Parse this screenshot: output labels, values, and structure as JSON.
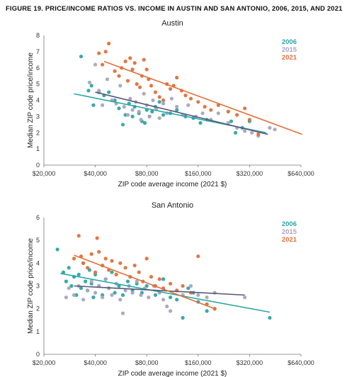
{
  "figure_title": "FIGURE 19. PRICE/INCOME RATIOS VS. INCOME IN AUSTIN AND SAN ANTONIO, 2006, 2015, AND 2021",
  "colors": {
    "2006": "#2aa6a4",
    "2015": "#a8a4bf",
    "2021": "#e0703a",
    "trend2015": "#5a5679"
  },
  "chart_data": [
    {
      "type": "scatter",
      "title": "Austin",
      "xlabel": "ZIP code average income (2021 $)",
      "ylabel": "Median ZIP code price/income",
      "xscale": "log",
      "xlim": [
        20000,
        640000
      ],
      "ylim": [
        0,
        8
      ],
      "xticks": [
        20000,
        40000,
        80000,
        160000,
        320000,
        640000
      ],
      "xticklabels": [
        "$20,000",
        "$40,000",
        "$80,000",
        "$160,000",
        "$320,000",
        "$640,000"
      ],
      "yticks": [
        0,
        1,
        2,
        3,
        4,
        5,
        6,
        7,
        8
      ],
      "yticklabels": [
        "0",
        "1",
        "2",
        "3",
        "4",
        "5",
        "6",
        "7",
        "8"
      ],
      "legend": [
        "2006",
        "2015",
        "2021"
      ],
      "legend_position": "top-right",
      "grid": false,
      "series": [
        {
          "name": "2006",
          "points": [
            [
              33000,
              6.7
            ],
            [
              36500,
              4.6
            ],
            [
              38000,
              4.9
            ],
            [
              39000,
              3.7
            ],
            [
              42000,
              4.5
            ],
            [
              45000,
              4.3
            ],
            [
              48000,
              4.5
            ],
            [
              52000,
              4.0
            ],
            [
              55000,
              3.5
            ],
            [
              58000,
              2.5
            ],
            [
              60000,
              3.1
            ],
            [
              63000,
              3.8
            ],
            [
              66000,
              3.0
            ],
            [
              68000,
              3.6
            ],
            [
              72000,
              3.2
            ],
            [
              75000,
              2.7
            ],
            [
              78000,
              2.6
            ],
            [
              80000,
              3.4
            ],
            [
              83000,
              3.0
            ],
            [
              86000,
              3.3
            ],
            [
              90000,
              3.6
            ],
            [
              95000,
              3.9
            ],
            [
              100000,
              3.1
            ],
            [
              110000,
              3.2
            ],
            [
              120000,
              3.4
            ],
            [
              135000,
              3.0
            ],
            [
              150000,
              2.9
            ],
            [
              165000,
              2.6
            ],
            [
              180000,
              2.8
            ],
            [
              250000,
              2.7
            ],
            [
              265000,
              2.0
            ],
            [
              290000,
              2.3
            ],
            [
              320000,
              2.7
            ]
          ],
          "trend": [
            [
              30000,
              4.4
            ],
            [
              400000,
              2.0
            ]
          ]
        },
        {
          "name": "2015",
          "points": [
            [
              37000,
              5.1
            ],
            [
              40000,
              6.2
            ],
            [
              42000,
              4.6
            ],
            [
              44000,
              3.7
            ],
            [
              47000,
              5.3
            ],
            [
              50000,
              4.0
            ],
            [
              53000,
              3.8
            ],
            [
              56000,
              4.9
            ],
            [
              59000,
              3.6
            ],
            [
              62000,
              3.1
            ],
            [
              64000,
              4.1
            ],
            [
              66000,
              3.4
            ],
            [
              69000,
              3.9
            ],
            [
              72000,
              3.3
            ],
            [
              74000,
              2.8
            ],
            [
              77000,
              4.4
            ],
            [
              80000,
              3.7
            ],
            [
              83000,
              3.0
            ],
            [
              87000,
              4.0
            ],
            [
              91000,
              3.5
            ],
            [
              95000,
              2.9
            ],
            [
              100000,
              3.8
            ],
            [
              105000,
              3.2
            ],
            [
              112000,
              4.1
            ],
            [
              120000,
              3.6
            ],
            [
              130000,
              3.1
            ],
            [
              140000,
              3.7
            ],
            [
              155000,
              3.0
            ],
            [
              170000,
              3.2
            ],
            [
              190000,
              2.8
            ],
            [
              210000,
              3.2
            ],
            [
              240000,
              2.6
            ],
            [
              270000,
              2.3
            ],
            [
              300000,
              2.1
            ],
            [
              330000,
              2.0
            ],
            [
              360000,
              1.8
            ],
            [
              420000,
              2.3
            ],
            [
              450000,
              2.2
            ]
          ],
          "trend": [
            [
              40000,
              4.5
            ],
            [
              410000,
              1.9
            ]
          ]
        },
        {
          "name": "2021",
          "points": [
            [
              42000,
              6.9
            ],
            [
              44000,
              6.2
            ],
            [
              46000,
              7.0
            ],
            [
              48000,
              7.5
            ],
            [
              52000,
              5.8
            ],
            [
              55000,
              5.5
            ],
            [
              57000,
              6.0
            ],
            [
              60000,
              6.4
            ],
            [
              62000,
              5.2
            ],
            [
              64000,
              6.6
            ],
            [
              66000,
              5.9
            ],
            [
              68000,
              6.3
            ],
            [
              70000,
              5.0
            ],
            [
              73000,
              4.8
            ],
            [
              75000,
              5.5
            ],
            [
              77000,
              6.5
            ],
            [
              80000,
              5.9
            ],
            [
              82000,
              5.3
            ],
            [
              85000,
              4.9
            ],
            [
              90000,
              4.5
            ],
            [
              95000,
              4.2
            ],
            [
              100000,
              4.0
            ],
            [
              105000,
              5.0
            ],
            [
              110000,
              4.7
            ],
            [
              115000,
              4.9
            ],
            [
              120000,
              5.4
            ],
            [
              128000,
              4.6
            ],
            [
              135000,
              4.3
            ],
            [
              145000,
              4.1
            ],
            [
              160000,
              3.9
            ],
            [
              175000,
              3.6
            ],
            [
              190000,
              3.4
            ],
            [
              210000,
              3.7
            ],
            [
              240000,
              3.3
            ],
            [
              270000,
              3.1
            ],
            [
              300000,
              3.5
            ],
            [
              320000,
              2.8
            ],
            [
              360000,
              1.9
            ]
          ],
          "trend": [
            [
              45000,
              6.4
            ],
            [
              650000,
              1.9
            ]
          ]
        }
      ]
    },
    {
      "type": "scatter",
      "title": "San Antonio",
      "xlabel": "ZIP code average income (2021 $)",
      "ylabel": "Median ZIP code price/income",
      "xscale": "log",
      "xlim": [
        20000,
        640000
      ],
      "ylim": [
        0,
        6
      ],
      "xticks": [
        20000,
        40000,
        80000,
        160000,
        320000,
        640000
      ],
      "xticklabels": [
        "$20,000",
        "$40,000",
        "$80,000",
        "$160,000",
        "$320,000",
        "$640,000"
      ],
      "yticks": [
        0,
        1,
        2,
        3,
        4,
        5,
        6
      ],
      "yticklabels": [
        "0",
        "1",
        "2",
        "3",
        "4",
        "5",
        "6"
      ],
      "legend": [
        "2006",
        "2015",
        "2021"
      ],
      "legend_position": "top-right",
      "grid": false,
      "series": [
        {
          "name": "2006",
          "points": [
            [
              24000,
              4.6
            ],
            [
              26000,
              3.6
            ],
            [
              27000,
              3.2
            ],
            [
              28000,
              3.8
            ],
            [
              29000,
              3.0
            ],
            [
              30000,
              3.4
            ],
            [
              31000,
              2.6
            ],
            [
              32000,
              3.5
            ],
            [
              33000,
              2.9
            ],
            [
              34000,
              4.0
            ],
            [
              35000,
              3.2
            ],
            [
              36000,
              2.8
            ],
            [
              37000,
              3.7
            ],
            [
              38000,
              3.1
            ],
            [
              39000,
              2.5
            ],
            [
              40000,
              3.5
            ],
            [
              42000,
              3.0
            ],
            [
              44000,
              2.6
            ],
            [
              46000,
              3.3
            ],
            [
              48000,
              2.9
            ],
            [
              50000,
              3.6
            ],
            [
              52000,
              2.7
            ],
            [
              55000,
              3.0
            ],
            [
              58000,
              2.6
            ],
            [
              62000,
              3.2
            ],
            [
              66000,
              2.8
            ],
            [
              70000,
              3.1
            ],
            [
              75000,
              2.7
            ],
            [
              80000,
              3.0
            ],
            [
              90000,
              2.6
            ],
            [
              100000,
              3.3
            ],
            [
              110000,
              2.5
            ],
            [
              120000,
              2.4
            ],
            [
              130000,
              1.6
            ],
            [
              140000,
              2.9
            ],
            [
              150000,
              2.7
            ],
            [
              160000,
              2.3
            ],
            [
              180000,
              1.9
            ],
            [
              200000,
              2.0
            ],
            [
              420000,
              1.6
            ]
          ],
          "trend": [
            [
              25000,
              3.55
            ],
            [
              420000,
              1.85
            ]
          ]
        },
        {
          "name": "2015",
          "points": [
            [
              27000,
              2.5
            ],
            [
              28000,
              2.9
            ],
            [
              30000,
              2.6
            ],
            [
              32000,
              3.0
            ],
            [
              34000,
              2.4
            ],
            [
              36000,
              2.8
            ],
            [
              38000,
              3.2
            ],
            [
              40000,
              2.7
            ],
            [
              42000,
              3.0
            ],
            [
              44000,
              2.5
            ],
            [
              46000,
              3.3
            ],
            [
              48000,
              2.9
            ],
            [
              50000,
              2.6
            ],
            [
              53000,
              3.1
            ],
            [
              56000,
              2.4
            ],
            [
              58000,
              1.8
            ],
            [
              60000,
              2.8
            ],
            [
              63000,
              3.0
            ],
            [
              66000,
              2.7
            ],
            [
              70000,
              3.2
            ],
            [
              74000,
              2.6
            ],
            [
              78000,
              2.9
            ],
            [
              82000,
              2.5
            ],
            [
              88000,
              3.0
            ],
            [
              95000,
              2.7
            ],
            [
              100000,
              2.4
            ],
            [
              105000,
              2.1
            ],
            [
              110000,
              1.9
            ],
            [
              120000,
              2.8
            ],
            [
              130000,
              2.6
            ],
            [
              145000,
              3.0
            ],
            [
              160000,
              2.6
            ],
            [
              180000,
              2.5
            ],
            [
              200000,
              2.7
            ],
            [
              300000,
              2.5
            ]
          ],
          "trend": [
            [
              30000,
              3.0
            ],
            [
              300000,
              2.6
            ]
          ]
        },
        {
          "name": "2021",
          "points": [
            [
              30000,
              4.2
            ],
            [
              32000,
              5.2
            ],
            [
              33000,
              4.3
            ],
            [
              34000,
              4.0
            ],
            [
              36000,
              3.8
            ],
            [
              38000,
              4.4
            ],
            [
              40000,
              3.6
            ],
            [
              41000,
              5.1
            ],
            [
              42000,
              4.5
            ],
            [
              44000,
              3.9
            ],
            [
              46000,
              4.2
            ],
            [
              48000,
              3.7
            ],
            [
              50000,
              4.1
            ],
            [
              53000,
              3.5
            ],
            [
              56000,
              4.0
            ],
            [
              60000,
              3.8
            ],
            [
              64000,
              3.4
            ],
            [
              68000,
              3.9
            ],
            [
              72000,
              3.6
            ],
            [
              76000,
              3.2
            ],
            [
              80000,
              4.2
            ],
            [
              85000,
              3.4
            ],
            [
              90000,
              3.0
            ],
            [
              95000,
              3.3
            ],
            [
              100000,
              2.9
            ],
            [
              110000,
              3.1
            ],
            [
              120000,
              2.8
            ],
            [
              130000,
              3.0
            ],
            [
              145000,
              2.7
            ],
            [
              160000,
              4.3
            ],
            [
              180000,
              2.2
            ],
            [
              200000,
              2.0
            ]
          ],
          "trend": [
            [
              30000,
              4.35
            ],
            [
              200000,
              2.0
            ]
          ]
        }
      ]
    }
  ]
}
